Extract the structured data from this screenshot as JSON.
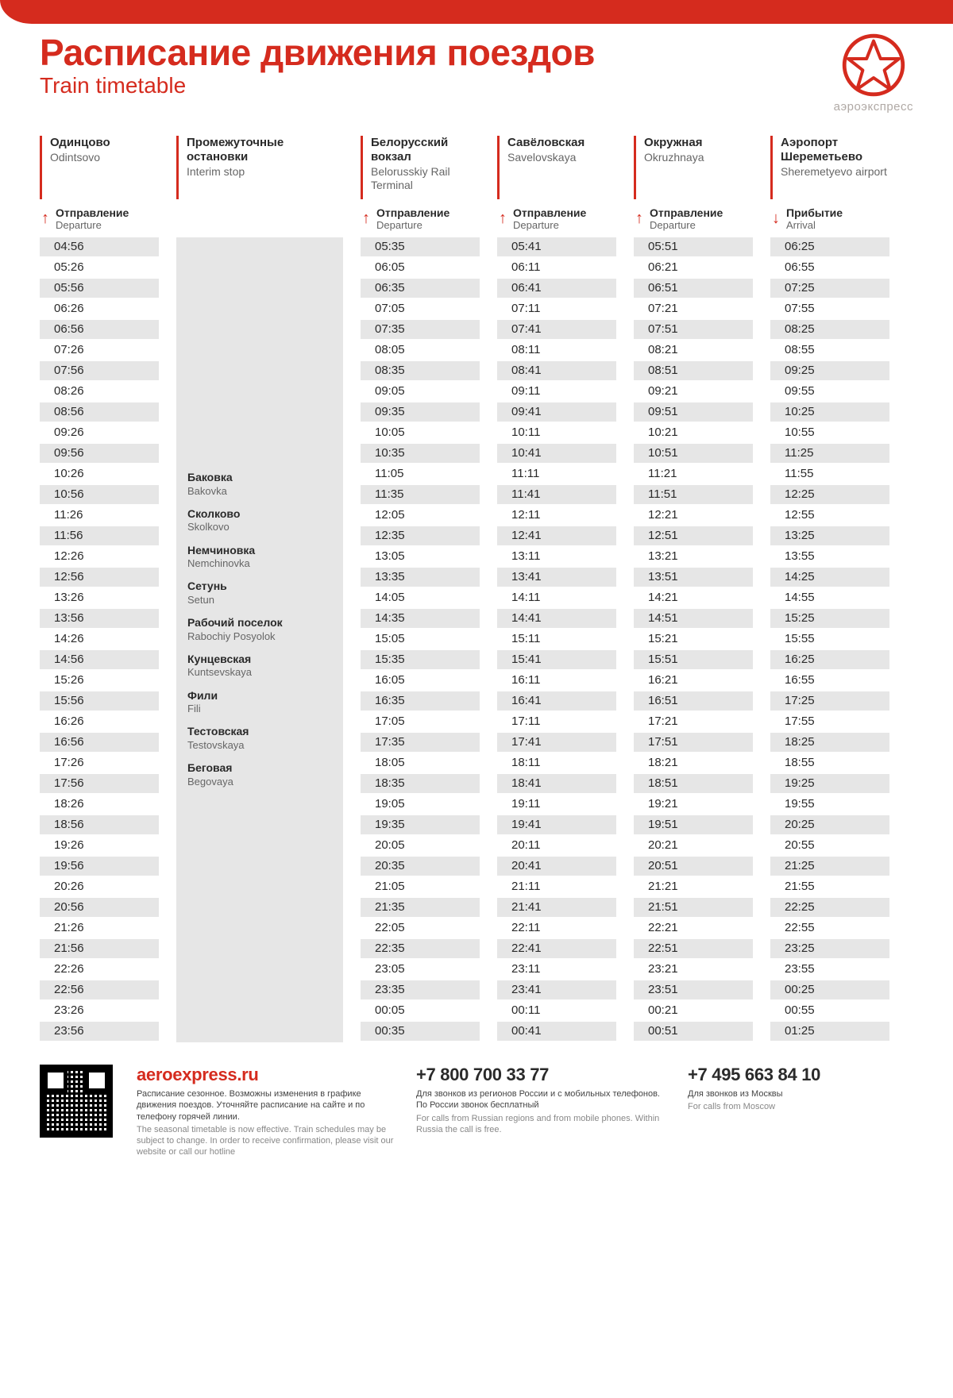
{
  "colors": {
    "accent": "#d52b1e",
    "cell_stripe": "#e6e6e6",
    "text": "#2a2a2a",
    "muted": "#888888",
    "background": "#ffffff"
  },
  "header": {
    "title_ru": "Расписание движения поездов",
    "title_en": "Train timetable",
    "brand": "аэроэкспресс"
  },
  "columns": [
    {
      "key": "odintsovo",
      "station_ru": "Одинцово",
      "station_en": "Odintsovo",
      "sub_ru": "Отправление",
      "sub_en": "Departure",
      "arrow": "up",
      "times": [
        "04:56",
        "05:26",
        "05:56",
        "06:26",
        "06:56",
        "07:26",
        "07:56",
        "08:26",
        "08:56",
        "09:26",
        "09:56",
        "10:26",
        "10:56",
        "11:26",
        "11:56",
        "12:26",
        "12:56",
        "13:26",
        "13:56",
        "14:26",
        "14:56",
        "15:26",
        "15:56",
        "16:26",
        "16:56",
        "17:26",
        "17:56",
        "18:26",
        "18:56",
        "19:26",
        "19:56",
        "20:26",
        "20:56",
        "21:26",
        "21:56",
        "22:26",
        "22:56",
        "23:26",
        "23:56"
      ]
    },
    {
      "key": "interim",
      "station_ru": "Промежуточные остановки",
      "station_en": "Interim stop",
      "stops": [
        {
          "ru": "Баковка",
          "en": "Bakovka"
        },
        {
          "ru": "Сколково",
          "en": "Skolkovo"
        },
        {
          "ru": "Немчиновка",
          "en": "Nemchinovka"
        },
        {
          "ru": "Сетунь",
          "en": "Setun"
        },
        {
          "ru": "Рабочий поселок",
          "en": "Rabochiy Posyolok"
        },
        {
          "ru": "Кунцевская",
          "en": "Kuntsevskaya"
        },
        {
          "ru": "Фили",
          "en": "Fili"
        },
        {
          "ru": "Тестовская",
          "en": "Testovskaya"
        },
        {
          "ru": "Беговая",
          "en": "Begovaya"
        }
      ]
    },
    {
      "key": "belorusskiy",
      "station_ru": "Белорусский вокзал",
      "station_en": "Belorusskiy Rail Terminal",
      "sub_ru": "Отправление",
      "sub_en": "Departure",
      "arrow": "up",
      "times": [
        "05:35",
        "06:05",
        "06:35",
        "07:05",
        "07:35",
        "08:05",
        "08:35",
        "09:05",
        "09:35",
        "10:05",
        "10:35",
        "11:05",
        "11:35",
        "12:05",
        "12:35",
        "13:05",
        "13:35",
        "14:05",
        "14:35",
        "15:05",
        "15:35",
        "16:05",
        "16:35",
        "17:05",
        "17:35",
        "18:05",
        "18:35",
        "19:05",
        "19:35",
        "20:05",
        "20:35",
        "21:05",
        "21:35",
        "22:05",
        "22:35",
        "23:05",
        "23:35",
        "00:05",
        "00:35"
      ]
    },
    {
      "key": "savelovskaya",
      "station_ru": "Савёловская",
      "station_en": "Savelovskaya",
      "sub_ru": "Отправление",
      "sub_en": "Departure",
      "arrow": "up",
      "times": [
        "05:41",
        "06:11",
        "06:41",
        "07:11",
        "07:41",
        "08:11",
        "08:41",
        "09:11",
        "09:41",
        "10:11",
        "10:41",
        "11:11",
        "11:41",
        "12:11",
        "12:41",
        "13:11",
        "13:41",
        "14:11",
        "14:41",
        "15:11",
        "15:41",
        "16:11",
        "16:41",
        "17:11",
        "17:41",
        "18:11",
        "18:41",
        "19:11",
        "19:41",
        "20:11",
        "20:41",
        "21:11",
        "21:41",
        "22:11",
        "22:41",
        "23:11",
        "23:41",
        "00:11",
        "00:41"
      ]
    },
    {
      "key": "okruzhnaya",
      "station_ru": "Окружная",
      "station_en": "Okruzhnaya",
      "sub_ru": "Отправление",
      "sub_en": "Departure",
      "arrow": "up",
      "times": [
        "05:51",
        "06:21",
        "06:51",
        "07:21",
        "07:51",
        "08:21",
        "08:51",
        "09:21",
        "09:51",
        "10:21",
        "10:51",
        "11:21",
        "11:51",
        "12:21",
        "12:51",
        "13:21",
        "13:51",
        "14:21",
        "14:51",
        "15:21",
        "15:51",
        "16:21",
        "16:51",
        "17:21",
        "17:51",
        "18:21",
        "18:51",
        "19:21",
        "19:51",
        "20:21",
        "20:51",
        "21:21",
        "21:51",
        "22:21",
        "22:51",
        "23:21",
        "23:51",
        "00:21",
        "00:51"
      ]
    },
    {
      "key": "sheremetyevo",
      "station_ru": "Аэропорт Шереметьево",
      "station_en": "Sheremetyevo airport",
      "sub_ru": "Прибытие",
      "sub_en": "Arrival",
      "arrow": "down",
      "times": [
        "06:25",
        "06:55",
        "07:25",
        "07:55",
        "08:25",
        "08:55",
        "09:25",
        "09:55",
        "10:25",
        "10:55",
        "11:25",
        "11:55",
        "12:25",
        "12:55",
        "13:25",
        "13:55",
        "14:25",
        "14:55",
        "15:25",
        "15:55",
        "16:25",
        "16:55",
        "17:25",
        "17:55",
        "18:25",
        "18:55",
        "19:25",
        "19:55",
        "20:25",
        "20:55",
        "21:25",
        "21:55",
        "22:25",
        "22:55",
        "23:25",
        "23:55",
        "00:25",
        "00:55",
        "01:25"
      ]
    }
  ],
  "footer": {
    "site": "aeroexpress.ru",
    "note_ru": "Расписание сезонное. Возможны изменения в графике движения поездов. Уточняйте расписание на сайте и по телефону горячей линии.",
    "note_en": "The seasonal timetable is now effective. Train schedules may be subject to change. In order to receive confirmation, please visit our website or call our hotline",
    "phone1": "+7 800 700 33 77",
    "phone1_ru": "Для звонков из регионов России и с мобильных телефонов. По России звонок бесплатный",
    "phone1_en": "For calls from Russian regions and from mobile phones. Within Russia the call is free.",
    "phone2": "+7 495 663 84 10",
    "phone2_ru": "Для звонков из Москвы",
    "phone2_en": "For calls from Moscow"
  }
}
